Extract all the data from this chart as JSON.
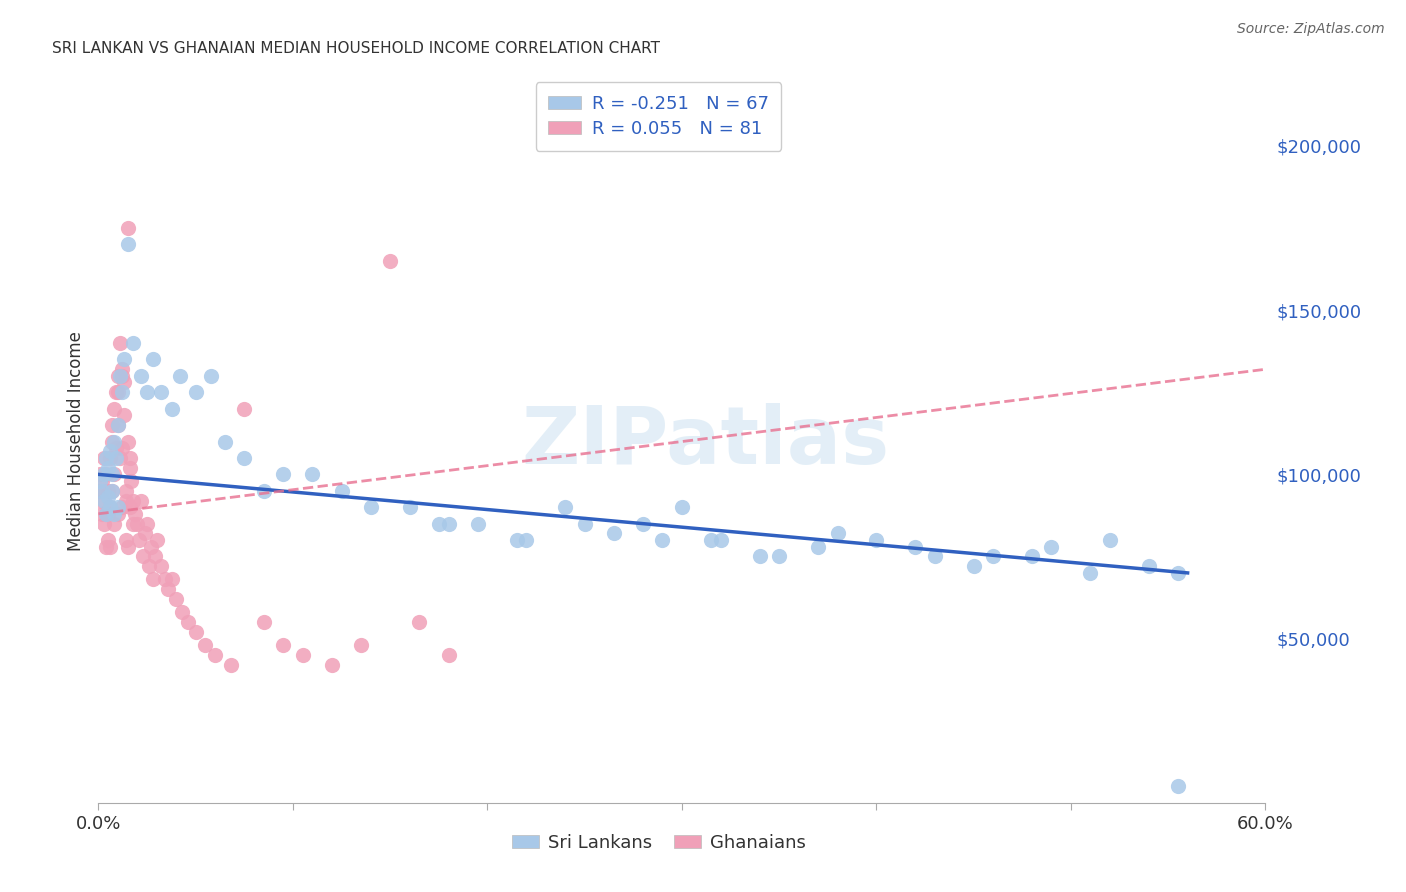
{
  "title": "SRI LANKAN VS GHANAIAN MEDIAN HOUSEHOLD INCOME CORRELATION CHART",
  "source": "Source: ZipAtlas.com",
  "ylabel": "Median Household Income",
  "ytick_labels": [
    "$50,000",
    "$100,000",
    "$150,000",
    "$200,000"
  ],
  "ytick_values": [
    50000,
    100000,
    150000,
    200000
  ],
  "xlim": [
    0.0,
    0.6
  ],
  "ylim": [
    0,
    220000
  ],
  "sri_lankan_color": "#a8c8e8",
  "ghanaian_color": "#f0a0b8",
  "sri_lankan_line_color": "#3060c0",
  "ghanaian_line_color": "#e87090",
  "legend_sri_r": "R = -0.251",
  "legend_sri_n": "N = 67",
  "legend_gha_r": "R = 0.055",
  "legend_gha_n": "N = 81",
  "watermark": "ZIPatlas",
  "xtick_positions": [
    0.0,
    0.1,
    0.2,
    0.3,
    0.4,
    0.5,
    0.6
  ],
  "xtick_labels_show": [
    "0.0%",
    "",
    "",
    "",
    "",
    "",
    "60.0%"
  ],
  "sri_lankans_x": [
    0.001,
    0.002,
    0.003,
    0.003,
    0.004,
    0.004,
    0.005,
    0.005,
    0.006,
    0.006,
    0.007,
    0.007,
    0.008,
    0.008,
    0.009,
    0.01,
    0.01,
    0.011,
    0.012,
    0.013,
    0.015,
    0.018,
    0.022,
    0.025,
    0.028,
    0.032,
    0.038,
    0.042,
    0.05,
    0.058,
    0.065,
    0.075,
    0.085,
    0.095,
    0.11,
    0.125,
    0.14,
    0.16,
    0.175,
    0.195,
    0.215,
    0.24,
    0.265,
    0.29,
    0.315,
    0.34,
    0.37,
    0.4,
    0.43,
    0.46,
    0.49,
    0.52,
    0.555,
    0.3,
    0.25,
    0.35,
    0.18,
    0.22,
    0.28,
    0.32,
    0.38,
    0.42,
    0.45,
    0.48,
    0.51,
    0.54,
    0.555
  ],
  "sri_lankans_y": [
    98000,
    95000,
    100000,
    92000,
    105000,
    88000,
    102000,
    93000,
    107000,
    90000,
    100000,
    95000,
    110000,
    88000,
    105000,
    115000,
    90000,
    130000,
    125000,
    135000,
    170000,
    140000,
    130000,
    125000,
    135000,
    125000,
    120000,
    130000,
    125000,
    130000,
    110000,
    105000,
    95000,
    100000,
    100000,
    95000,
    90000,
    90000,
    85000,
    85000,
    80000,
    90000,
    82000,
    80000,
    80000,
    75000,
    78000,
    80000,
    75000,
    75000,
    78000,
    80000,
    70000,
    90000,
    85000,
    75000,
    85000,
    80000,
    85000,
    80000,
    82000,
    78000,
    72000,
    75000,
    70000,
    72000,
    5000
  ],
  "ghanaians_x": [
    0.001,
    0.001,
    0.002,
    0.002,
    0.002,
    0.003,
    0.003,
    0.003,
    0.004,
    0.004,
    0.004,
    0.005,
    0.005,
    0.005,
    0.006,
    0.006,
    0.006,
    0.007,
    0.007,
    0.007,
    0.008,
    0.008,
    0.008,
    0.009,
    0.009,
    0.01,
    0.01,
    0.01,
    0.011,
    0.011,
    0.012,
    0.012,
    0.013,
    0.013,
    0.014,
    0.014,
    0.015,
    0.015,
    0.016,
    0.016,
    0.017,
    0.018,
    0.019,
    0.02,
    0.021,
    0.022,
    0.023,
    0.024,
    0.025,
    0.026,
    0.027,
    0.028,
    0.029,
    0.03,
    0.032,
    0.034,
    0.036,
    0.038,
    0.04,
    0.043,
    0.046,
    0.05,
    0.055,
    0.06,
    0.068,
    0.075,
    0.085,
    0.095,
    0.105,
    0.12,
    0.135,
    0.15,
    0.165,
    0.18,
    0.01,
    0.012,
    0.014,
    0.016,
    0.018,
    0.012,
    0.015
  ],
  "ghanaians_y": [
    95000,
    100000,
    98000,
    88000,
    92000,
    105000,
    85000,
    95000,
    100000,
    88000,
    78000,
    95000,
    88000,
    80000,
    105000,
    90000,
    78000,
    110000,
    95000,
    115000,
    120000,
    100000,
    85000,
    125000,
    108000,
    130000,
    115000,
    88000,
    140000,
    105000,
    130000,
    108000,
    128000,
    118000,
    95000,
    80000,
    110000,
    78000,
    105000,
    90000,
    98000,
    92000,
    88000,
    85000,
    80000,
    92000,
    75000,
    82000,
    85000,
    72000,
    78000,
    68000,
    75000,
    80000,
    72000,
    68000,
    65000,
    68000,
    62000,
    58000,
    55000,
    52000,
    48000,
    45000,
    42000,
    120000,
    55000,
    48000,
    45000,
    42000,
    48000,
    165000,
    55000,
    45000,
    125000,
    132000,
    92000,
    102000,
    85000,
    90000,
    175000
  ]
}
